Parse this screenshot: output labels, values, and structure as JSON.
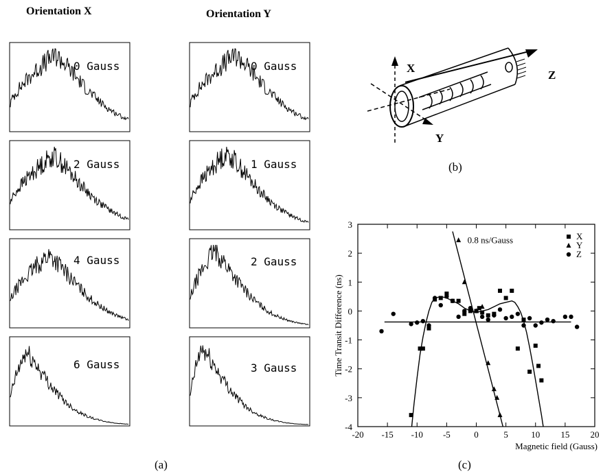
{
  "panel_a": {
    "caption": "(a)",
    "orientation_x": {
      "title": "Orientation X",
      "histograms": [
        {
          "label": "0 Gauss",
          "peak": 0.95,
          "skew": 0.95
        },
        {
          "label": "2 Gauss",
          "peak": 0.92,
          "skew": 0.9
        },
        {
          "label": "4 Gauss",
          "peak": 0.9,
          "skew": 0.8
        },
        {
          "label": "6 Gauss",
          "peak": 0.9,
          "skew": 0.25
        }
      ]
    },
    "orientation_y": {
      "title": "Orientation Y",
      "histograms": [
        {
          "label": "0 Gauss",
          "peak": 0.95,
          "skew": 0.95
        },
        {
          "label": "1 Gauss",
          "peak": 0.95,
          "skew": 0.75
        },
        {
          "label": "2 Gauss",
          "peak": 0.95,
          "skew": 0.45
        },
        {
          "label": "3 Gauss",
          "peak": 0.95,
          "skew": 0.15
        }
      ]
    }
  },
  "panel_b": {
    "caption": "(b)",
    "axis_x": "X",
    "axis_y": "Y",
    "axis_z": "Z"
  },
  "chart_data": {
    "type": "scatter",
    "caption": "(c)",
    "xlabel": "Magnetic field (Gauss)",
    "ylabel": "Time Transit Difference (ns)",
    "xlim": [
      -20,
      20
    ],
    "ylim": [
      -4,
      3
    ],
    "xticks": [
      "-20",
      "-15",
      "-10",
      "-5",
      "0",
      "5",
      "10",
      "15",
      "20"
    ],
    "yticks": [
      "3",
      "2",
      "1",
      "0",
      "-1",
      "-2",
      "-3",
      "-4"
    ],
    "annotation": "0.8 ns/Gauss",
    "legend_position": "top-right",
    "series": [
      {
        "name": "X",
        "marker": "square",
        "x": [
          -11,
          -9.5,
          -9,
          -8,
          -7,
          -6,
          -5,
          -4,
          -3,
          -2,
          -1,
          0,
          0.5,
          1,
          2,
          3,
          4,
          5,
          6,
          7,
          8,
          9,
          10,
          10.5,
          11
        ],
        "y": [
          -3.6,
          -1.3,
          -1.3,
          -0.6,
          0.4,
          0.45,
          0.6,
          0.35,
          0.35,
          -0.1,
          0.0,
          0.0,
          0.1,
          -0.05,
          -0.15,
          -0.1,
          0.7,
          0.45,
          0.7,
          -1.3,
          -0.3,
          -2.1,
          -1.2,
          -1.9,
          -2.4
        ]
      },
      {
        "name": "Y",
        "marker": "triangle",
        "x": [
          -3,
          -2,
          0,
          1,
          2,
          3,
          3.5,
          4
        ],
        "y": [
          2.45,
          1.0,
          0.0,
          0.15,
          -1.8,
          -2.7,
          -3.0,
          -3.6
        ]
      },
      {
        "name": "Z",
        "marker": "circle",
        "x": [
          -16,
          -14,
          -11,
          -10,
          -9,
          -8,
          -7,
          -6,
          -5,
          -4,
          -3,
          -2,
          -1,
          0,
          1,
          2,
          3,
          4,
          5,
          6,
          7,
          8,
          9,
          10,
          11,
          12,
          13,
          15,
          16,
          17
        ],
        "y": [
          -0.7,
          -0.1,
          -0.45,
          -0.4,
          -0.35,
          -0.5,
          0.45,
          0.2,
          0.5,
          0.35,
          -0.2,
          0.0,
          0.1,
          0.0,
          -0.2,
          -0.3,
          -0.15,
          0.05,
          -0.25,
          -0.2,
          -0.1,
          -0.5,
          -0.25,
          -0.5,
          -0.4,
          -0.3,
          -0.35,
          -0.2,
          -0.2,
          -0.55
        ]
      }
    ],
    "fits": [
      {
        "for": "Z",
        "kind": "linear",
        "x": [
          -15.5,
          16
        ],
        "y": [
          -0.38,
          -0.38
        ]
      },
      {
        "for": "Y",
        "kind": "linear",
        "x": [
          -4,
          4.5
        ],
        "y": [
          2.75,
          -4.0
        ]
      },
      {
        "for": "X",
        "kind": "curve",
        "x": [
          -10.9,
          -10.5,
          -10,
          -9.5,
          -9,
          -8.5,
          -8,
          -7.5,
          -7,
          -6,
          -5,
          -4,
          -3,
          -2,
          -1,
          0,
          1,
          2,
          3,
          4,
          5,
          6,
          6.5,
          7,
          7.5,
          8,
          8.5,
          9,
          9.5,
          10,
          10.5,
          11,
          11.3
        ],
        "y": [
          -4.0,
          -3.2,
          -2.3,
          -1.5,
          -0.9,
          -0.4,
          0.0,
          0.3,
          0.45,
          0.5,
          0.45,
          0.35,
          0.25,
          0.1,
          0.0,
          -0.05,
          0.0,
          0.05,
          0.15,
          0.25,
          0.3,
          0.35,
          0.3,
          0.15,
          -0.05,
          -0.35,
          -0.75,
          -1.25,
          -1.8,
          -2.4,
          -3.0,
          -3.6,
          -4.0
        ]
      }
    ]
  }
}
